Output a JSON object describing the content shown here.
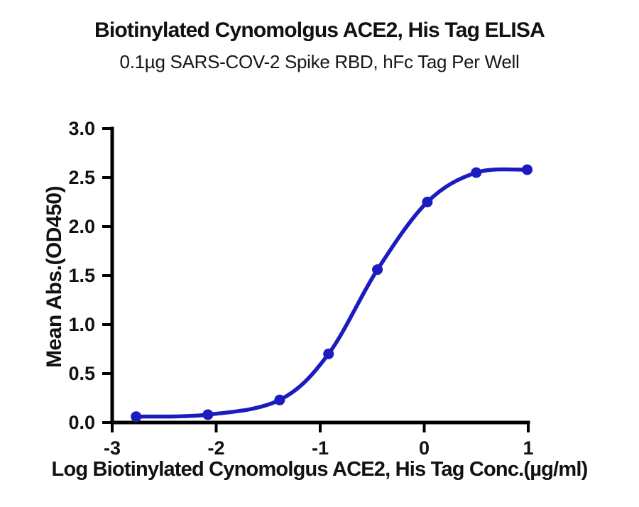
{
  "chart_data": {
    "type": "line",
    "title": "Biotinylated Cynomolgus ACE2, His Tag ELISA",
    "subtitle": "0.1µg SARS-COV-2 Spike RBD, hFc Tag Per Well",
    "xlabel": "Log Biotinylated Cynomolgus ACE2, His Tag Conc.(µg/ml)",
    "ylabel": "Mean Abs.(OD450)",
    "xlim": [
      -3,
      1
    ],
    "ylim": [
      0,
      3
    ],
    "xticks": [
      {
        "v": -3,
        "label": "-3"
      },
      {
        "v": -2,
        "label": "-2"
      },
      {
        "v": -1,
        "label": "-1"
      },
      {
        "v": 0,
        "label": "0"
      },
      {
        "v": 1,
        "label": "1"
      }
    ],
    "yticks": [
      {
        "v": 0.0,
        "label": "0.0"
      },
      {
        "v": 0.5,
        "label": "0.5"
      },
      {
        "v": 1.0,
        "label": "1.0"
      },
      {
        "v": 1.5,
        "label": "1.5"
      },
      {
        "v": 2.0,
        "label": "2.0"
      },
      {
        "v": 2.5,
        "label": "2.5"
      },
      {
        "v": 3.0,
        "label": "3.0"
      }
    ],
    "grid": false,
    "legend": "none",
    "axis_color": "#000000",
    "background": "#ffffff",
    "series": [
      {
        "color": "#1B1BC0",
        "marker": "circle",
        "points": [
          {
            "x": -2.77,
            "y": 0.06
          },
          {
            "x": -2.08,
            "y": 0.08
          },
          {
            "x": -1.39,
            "y": 0.23
          },
          {
            "x": -0.92,
            "y": 0.7
          },
          {
            "x": -0.45,
            "y": 1.56
          },
          {
            "x": 0.03,
            "y": 2.25
          },
          {
            "x": 0.5,
            "y": 2.55
          },
          {
            "x": 0.99,
            "y": 2.58
          }
        ]
      }
    ]
  }
}
